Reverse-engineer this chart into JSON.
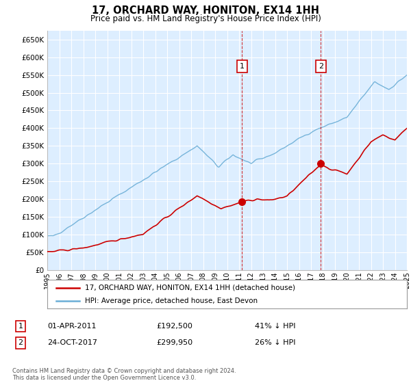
{
  "title": "17, ORCHARD WAY, HONITON, EX14 1HH",
  "subtitle": "Price paid vs. HM Land Registry's House Price Index (HPI)",
  "ylabel_ticks": [
    "£0",
    "£50K",
    "£100K",
    "£150K",
    "£200K",
    "£250K",
    "£300K",
    "£350K",
    "£400K",
    "£450K",
    "£500K",
    "£550K",
    "£600K",
    "£650K"
  ],
  "ytick_values": [
    0,
    50000,
    100000,
    150000,
    200000,
    250000,
    300000,
    350000,
    400000,
    450000,
    500000,
    550000,
    600000,
    650000
  ],
  "hpi_color": "#6baed6",
  "price_color": "#cc0000",
  "sale1_date": 2011.25,
  "sale1_price": 192500,
  "sale2_date": 2017.82,
  "sale2_price": 299950,
  "legend_line1": "17, ORCHARD WAY, HONITON, EX14 1HH (detached house)",
  "legend_line2": "HPI: Average price, detached house, East Devon",
  "sale1_col1": "01-APR-2011",
  "sale1_col2": "£192,500",
  "sale1_col3": "41% ↓ HPI",
  "sale2_col1": "24-OCT-2017",
  "sale2_col2": "£299,950",
  "sale2_col3": "26% ↓ HPI",
  "footnote": "Contains HM Land Registry data © Crown copyright and database right 2024.\nThis data is licensed under the Open Government Licence v3.0.",
  "xmin": 1995,
  "xmax": 2025,
  "ymin": 0,
  "ymax": 675000,
  "background_plot": "#ddeeff",
  "grid_color": "#ffffff"
}
